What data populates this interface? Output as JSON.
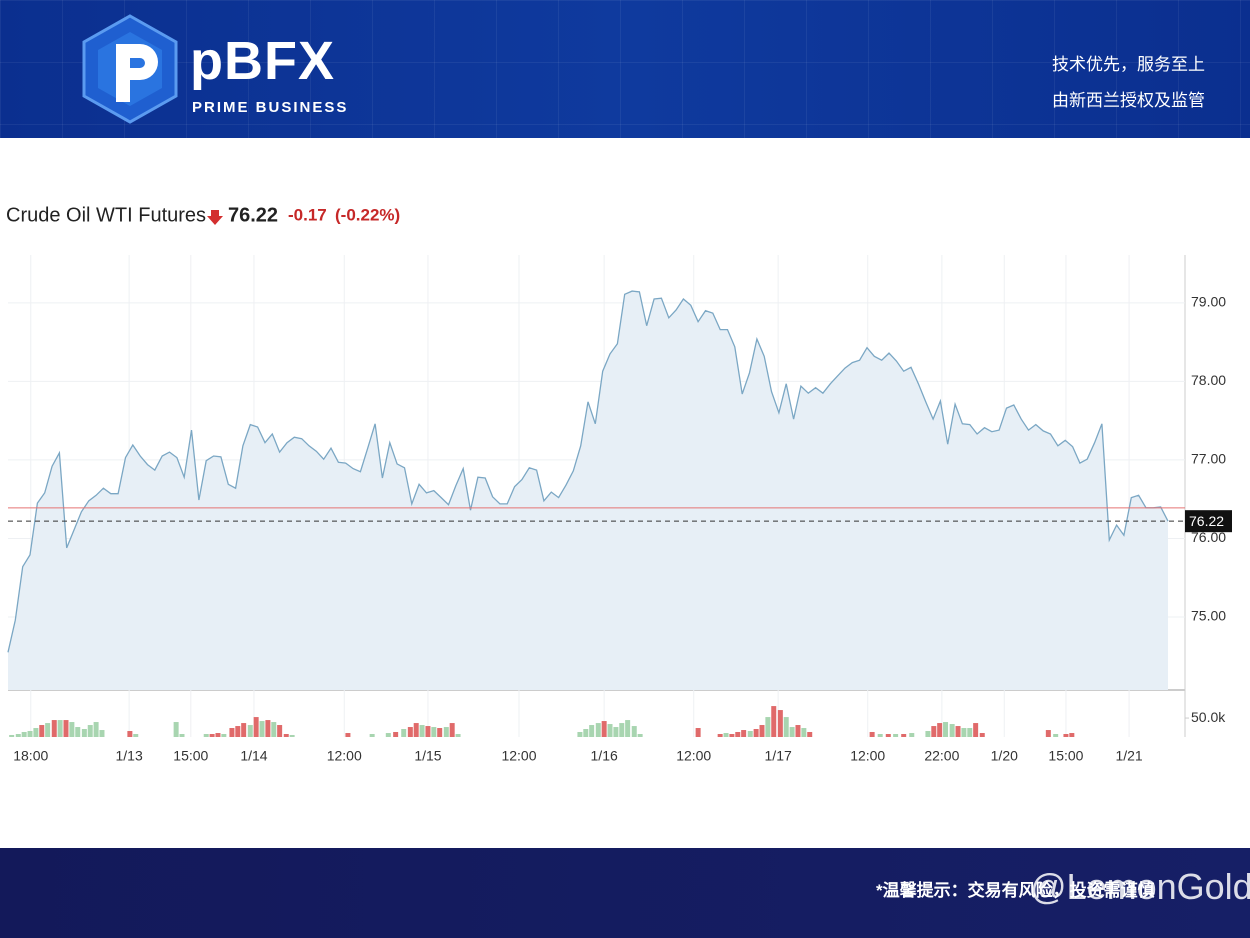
{
  "header": {
    "logo_text": "pBFX",
    "logo_subtitle": "PRIME BUSINESS",
    "slogan_lines": [
      "技术优先，服务至上",
      "由新西兰授权及监管"
    ]
  },
  "footer": {
    "note": "*温馨提示：交易有风险，投资需谨慎",
    "watermark": "@LemonGold"
  },
  "chart_data": {
    "type": "area",
    "title": "Crude Oil WTI Futures",
    "price": 76.22,
    "change": -0.17,
    "change_percent": {
      "value": -0.22,
      "label": "(-0.22%)"
    },
    "previous_close": 76.39,
    "color": "#7ba7c4",
    "fill": "#e7eff6",
    "grid": true,
    "values": [
      74.55,
      74.96,
      75.64,
      75.79,
      76.45,
      76.58,
      76.92,
      77.09,
      75.88,
      76.11,
      76.34,
      76.48,
      76.55,
      76.64,
      76.57,
      76.57,
      77.03,
      77.19,
      77.05,
      76.94,
      76.87,
      77.05,
      77.1,
      77.03,
      76.78,
      77.38,
      76.49,
      76.99,
      77.05,
      77.04,
      76.69,
      76.64,
      77.18,
      77.45,
      77.42,
      77.22,
      77.33,
      77.1,
      77.22,
      77.29,
      77.27,
      77.18,
      77.11,
      77.01,
      77.15,
      76.97,
      76.96,
      76.89,
      76.85,
      77.15,
      77.46,
      76.77,
      77.22,
      76.95,
      76.9,
      76.44,
      76.69,
      76.58,
      76.61,
      76.52,
      76.43,
      76.67,
      76.89,
      76.36,
      76.78,
      76.77,
      76.53,
      76.44,
      76.44,
      76.66,
      76.75,
      76.9,
      76.87,
      76.48,
      76.59,
      76.52,
      76.68,
      76.86,
      77.18,
      77.74,
      77.46,
      78.13,
      78.35,
      78.48,
      79.11,
      79.15,
      79.14,
      78.71,
      79.05,
      79.06,
      78.81,
      78.91,
      79.05,
      78.97,
      78.76,
      78.9,
      78.87,
      78.66,
      78.66,
      78.44,
      77.84,
      78.11,
      78.54,
      78.32,
      77.87,
      77.6,
      77.97,
      77.52,
      77.94,
      77.85,
      77.92,
      77.85,
      77.97,
      78.07,
      78.17,
      78.24,
      78.27,
      78.43,
      78.32,
      78.27,
      78.36,
      78.26,
      78.13,
      78.18,
      77.97,
      77.74,
      77.52,
      77.75,
      77.2,
      77.71,
      77.46,
      77.45,
      77.33,
      77.41,
      77.36,
      77.38,
      77.66,
      77.7,
      77.52,
      77.38,
      77.45,
      77.37,
      77.33,
      77.18,
      77.25,
      77.17,
      76.96,
      77.01,
      77.22,
      77.46,
      75.98,
      76.17,
      76.04,
      76.52,
      76.55,
      76.39,
      76.39,
      76.4,
      76.22
    ],
    "xlim": [
      0,
      158
    ],
    "xticks": [
      {
        "value": 3.1,
        "label": "18:00"
      },
      {
        "value": 16.5,
        "label": "1/13"
      },
      {
        "value": 24.9,
        "label": "15:00"
      },
      {
        "value": 33.5,
        "label": "1/14"
      },
      {
        "value": 45.8,
        "label": "12:00"
      },
      {
        "value": 57.2,
        "label": "1/15"
      },
      {
        "value": 69.6,
        "label": "12:00"
      },
      {
        "value": 81.2,
        "label": "1/16"
      },
      {
        "value": 93.4,
        "label": "12:00"
      },
      {
        "value": 104.9,
        "label": "1/17"
      },
      {
        "value": 117.1,
        "label": "12:00"
      },
      {
        "value": 127.2,
        "label": "22:00"
      },
      {
        "value": 135.7,
        "label": "1/20"
      },
      {
        "value": 144.1,
        "label": "15:00"
      },
      {
        "value": 152.7,
        "label": "1/21"
      }
    ],
    "ylim": [
      74.07,
      79.61
    ],
    "yticks": [
      {
        "value": 75,
        "label": "75.00"
      },
      {
        "value": 76,
        "label": "76.00"
      },
      {
        "value": 77,
        "label": "77.00"
      },
      {
        "value": 78,
        "label": "78.00"
      },
      {
        "value": 79,
        "label": "79.00"
      }
    ],
    "volume": {
      "ylim": [
        0,
        124000
      ],
      "yticks": [
        {
          "value": 50000,
          "label": "50.0k"
        }
      ],
      "x": [
        0.5,
        1.4,
        2.2,
        3.0,
        3.8,
        4.6,
        5.4,
        6.3,
        7.1,
        7.9,
        8.7,
        9.5,
        10.4,
        11.2,
        12.0,
        12.8,
        16.6,
        17.4,
        22.9,
        23.7,
        27.0,
        27.8,
        28.6,
        29.4,
        30.5,
        31.3,
        32.1,
        33.0,
        33.8,
        34.6,
        35.4,
        36.2,
        37.0,
        37.9,
        38.7,
        46.3,
        49.6,
        51.8,
        52.8,
        53.9,
        54.8,
        55.6,
        56.4,
        57.2,
        58.0,
        58.8,
        59.7,
        60.5,
        61.3,
        77.9,
        78.7,
        79.5,
        80.4,
        81.2,
        82.0,
        82.8,
        83.6,
        84.4,
        85.3,
        86.1,
        94.0,
        97.0,
        97.8,
        98.6,
        99.4,
        100.2,
        101.1,
        101.9,
        102.7,
        103.5,
        104.3,
        105.2,
        106.0,
        106.8,
        107.6,
        108.4,
        109.2,
        117.7,
        118.8,
        119.9,
        120.9,
        122.0,
        123.1,
        125.3,
        126.1,
        126.9,
        127.7,
        128.6,
        129.4,
        130.2,
        131.0,
        131.8,
        132.7,
        141.7,
        142.7,
        144.1,
        144.9
      ],
      "values": [
        5300,
        7900,
        13200,
        15800,
        23700,
        31600,
        36800,
        44700,
        44700,
        44700,
        39500,
        26300,
        21100,
        31600,
        39500,
        18400,
        15800,
        7900,
        39500,
        7900,
        7900,
        7900,
        10500,
        7900,
        23700,
        28900,
        36800,
        31600,
        52600,
        42100,
        44700,
        39500,
        31600,
        7900,
        5300,
        10500,
        7900,
        10500,
        13200,
        21100,
        26300,
        36800,
        31600,
        28900,
        26300,
        23700,
        26300,
        36800,
        7900,
        13200,
        21100,
        31600,
        36800,
        42100,
        34200,
        26300,
        36800,
        44700,
        28900,
        7900,
        23700,
        7900,
        10500,
        7900,
        13200,
        18400,
        15800,
        21100,
        31600,
        52600,
        81600,
        71100,
        52600,
        26300,
        31600,
        23700,
        13200,
        13200,
        7900,
        7900,
        7900,
        7900,
        10500,
        15800,
        28900,
        36800,
        39500,
        34200,
        28900,
        23700,
        23700,
        36800,
        10500,
        18400,
        7900,
        7900,
        10500
      ],
      "colors": [
        "#a8d5b0",
        "#a8d5b0",
        "#a8d5b0",
        "#a8d5b0",
        "#a8d5b0",
        "#e06a6a",
        "#a8d5b0",
        "#e06a6a",
        "#a8d5b0",
        "#e06a6a",
        "#a8d5b0",
        "#a8d5b0",
        "#a8d5b0",
        "#a8d5b0",
        "#a8d5b0",
        "#a8d5b0",
        "#e06a6a",
        "#a8d5b0",
        "#a8d5b0",
        "#a8d5b0",
        "#a8d5b0",
        "#e06a6a",
        "#e06a6a",
        "#a8d5b0",
        "#e06a6a",
        "#e06a6a",
        "#e06a6a",
        "#a8d5b0",
        "#e06a6a",
        "#a8d5b0",
        "#e06a6a",
        "#a8d5b0",
        "#e06a6a",
        "#e06a6a",
        "#a8d5b0",
        "#e06a6a",
        "#a8d5b0",
        "#a8d5b0",
        "#e06a6a",
        "#a8d5b0",
        "#e06a6a",
        "#e06a6a",
        "#a8d5b0",
        "#e06a6a",
        "#a8d5b0",
        "#e06a6a",
        "#a8d5b0",
        "#e06a6a",
        "#a8d5b0",
        "#a8d5b0",
        "#a8d5b0",
        "#a8d5b0",
        "#a8d5b0",
        "#e06a6a",
        "#a8d5b0",
        "#a8d5b0",
        "#a8d5b0",
        "#a8d5b0",
        "#a8d5b0",
        "#a8d5b0",
        "#e06a6a",
        "#e06a6a",
        "#a8d5b0",
        "#e06a6a",
        "#e06a6a",
        "#e06a6a",
        "#a8d5b0",
        "#e06a6a",
        "#e06a6a",
        "#a8d5b0",
        "#e06a6a",
        "#e06a6a",
        "#a8d5b0",
        "#a8d5b0",
        "#e06a6a",
        "#a8d5b0",
        "#e06a6a",
        "#e06a6a",
        "#a8d5b0",
        "#e06a6a",
        "#a8d5b0",
        "#e06a6a",
        "#a8d5b0",
        "#a8d5b0",
        "#e06a6a",
        "#e06a6a",
        "#a8d5b0",
        "#a8d5b0",
        "#e06a6a",
        "#a8d5b0",
        "#a8d5b0",
        "#e06a6a",
        "#e06a6a",
        "#e06a6a",
        "#a8d5b0",
        "#e06a6a",
        "#e06a6a"
      ]
    }
  }
}
